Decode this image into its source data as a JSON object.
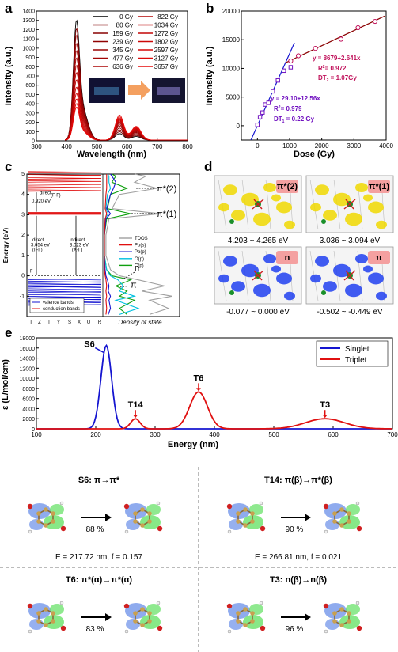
{
  "colors": {
    "red": "#e01010",
    "blue": "#1515d0",
    "magenta": "#c0105a",
    "purple": "#7010c0",
    "green": "#10a010",
    "cyan": "#00c0e0",
    "gray": "#a0a0a0",
    "darkred": "#8a0000",
    "orange": "#f4a060"
  },
  "panels": {
    "a": "a",
    "b": "b",
    "c": "c",
    "d": "d",
    "e": "e"
  },
  "chart_data": [
    {
      "id": "a",
      "type": "line",
      "xlabel": "Wavelength (nm)",
      "ylabel": "Intensity (a.u.)",
      "xlim": [
        300,
        800
      ],
      "ylim": [
        0,
        1400
      ],
      "xticks": [
        "300",
        "400",
        "500",
        "600",
        "700",
        "800"
      ],
      "yticks": [
        "0",
        "100",
        "200",
        "300",
        "400",
        "500",
        "600",
        "700",
        "800",
        "900",
        "1000",
        "1100",
        "1200",
        "1300",
        "1400"
      ],
      "legend": [
        "0 Gy",
        "80 Gy",
        "159 Gy",
        "239 Gy",
        "345 Gy",
        "477 Gy",
        "636 Gy",
        "822 Gy",
        "1034 Gy",
        "1272 Gy",
        "1802 Gy",
        "2597 Gy",
        "3127 Gy",
        "3657 Gy"
      ],
      "series_peak1": [
        1310,
        1220,
        1150,
        1060,
        980,
        900,
        820,
        740,
        660,
        580,
        510,
        450,
        400,
        360
      ],
      "series_peak2": [
        70,
        90,
        110,
        130,
        150,
        165,
        180,
        195,
        205,
        215,
        225,
        235,
        250,
        270
      ]
    },
    {
      "id": "b",
      "type": "scatter",
      "xlabel": "Dose (Gy)",
      "ylabel": "Intensity (a.u.)",
      "xlim": [
        -500,
        4000
      ],
      "ylim": [
        -2500,
        20000
      ],
      "xticks": [
        "0",
        "1000",
        "2000",
        "3000",
        "4000"
      ],
      "yticks": [
        "0",
        "5000",
        "10000",
        "15000",
        "20000"
      ],
      "low": {
        "x": [
          0,
          80,
          159,
          239,
          345,
          477,
          636,
          822,
          1034
        ],
        "y": [
          150,
          1500,
          2300,
          3700,
          4000,
          6000,
          7900,
          9600,
          10200
        ]
      },
      "high": {
        "x": [
          1034,
          1272,
          1802,
          2597,
          3127,
          3657
        ],
        "y": [
          11300,
          12200,
          13500,
          15100,
          17100,
          18200
        ]
      },
      "fit_low": {
        "eq": "y = 29.10+12.56x",
        "r2": "R",
        "r2val": "= 0.979",
        "dt": "DT",
        "dtsub": "1",
        "dtval": " = 0.22 Gy"
      },
      "fit_high": {
        "eq": "y = 8679+2.641x",
        "r2": "R",
        "r2val": "= 0.972",
        "dt": "DT",
        "dtsub": "2",
        "dtval": " = 1.07Gy"
      }
    },
    {
      "id": "c",
      "type": "line",
      "ylabel": "Energy (eV)",
      "ylim": [
        -2,
        5
      ],
      "yticks": [
        "-1",
        "0",
        "1",
        "2",
        "3",
        "4",
        "5"
      ],
      "kpoints": [
        "Γ",
        "Z",
        "T",
        "Y",
        "S",
        "X",
        "U",
        "R"
      ],
      "dos_label": "Density of state",
      "legend": [
        "TDOS",
        "Pb(s)",
        "Pb(p)",
        "O(p)",
        "C(p)"
      ],
      "band_legend": [
        "valence bands",
        "conduction bands"
      ],
      "annotations": {
        "direct_top": "direct",
        "gap_top": "0.920 eV",
        "kp_top": "(Γ-Γ)",
        "direct": "direct",
        "direct_val": "3.054 eV",
        "direct_k": "(Γ-Γ)",
        "indirect": "indirect",
        "indirect_val": "3.023 eV",
        "indirect_k": "(X-Γ)",
        "pi2": "π*(2)",
        "pi1": "π*(1)",
        "n": "n",
        "pi": "π",
        "gamma": "Γ"
      }
    },
    {
      "id": "e",
      "type": "line",
      "xlabel": "Energy (nm)",
      "ylabel": "ε (L/mol/cm)",
      "xlim": [
        100,
        700
      ],
      "ylim": [
        0,
        18000
      ],
      "xticks": [
        "100",
        "200",
        "300",
        "400",
        "500",
        "600",
        "700"
      ],
      "yticks": [
        "0",
        "2000",
        "4000",
        "6000",
        "8000",
        "10000",
        "12000",
        "14000",
        "16000",
        "18000"
      ],
      "series": [
        {
          "name": "Singlet",
          "peaks": [
            {
              "label": "S6",
              "x": 217.72,
              "y": 16500
            }
          ]
        },
        {
          "name": "Triplet",
          "peaks": [
            {
              "label": "T14",
              "x": 266.81,
              "y": 2000
            },
            {
              "label": "T6",
              "x": 373.3,
              "y": 7300
            },
            {
              "label": "T3",
              "x": 586.26,
              "y": 2000
            }
          ]
        }
      ]
    }
  ],
  "panel_d": [
    {
      "tag": "π*(2)",
      "range": "4.203 ~ 4.265 eV"
    },
    {
      "tag": "π*(1)",
      "range": "3.036 ~ 3.094 eV"
    },
    {
      "tag": "n",
      "range": "-0.077 ~ 0.000 eV"
    },
    {
      "tag": "π",
      "range": "-0.502 ~ -0.449 eV"
    }
  ],
  "orbitals": [
    {
      "title": "S6: π→π*",
      "pct": "88 %",
      "energy": "E = 217.72 nm, f = 0.157"
    },
    {
      "title": "T14: π(β)→π*(β)",
      "pct": "90 %",
      "energy": "E = 266.81 nm, f = 0.021"
    },
    {
      "title": "T6: π*(α)→π*(α)",
      "pct": "83 %",
      "energy": "E = 373.30 nm, f = 0.081"
    },
    {
      "title": "T3: n(β)→n(β)",
      "pct": "96 %",
      "energy": "E = 586.26 nm, f = 0.019"
    }
  ]
}
